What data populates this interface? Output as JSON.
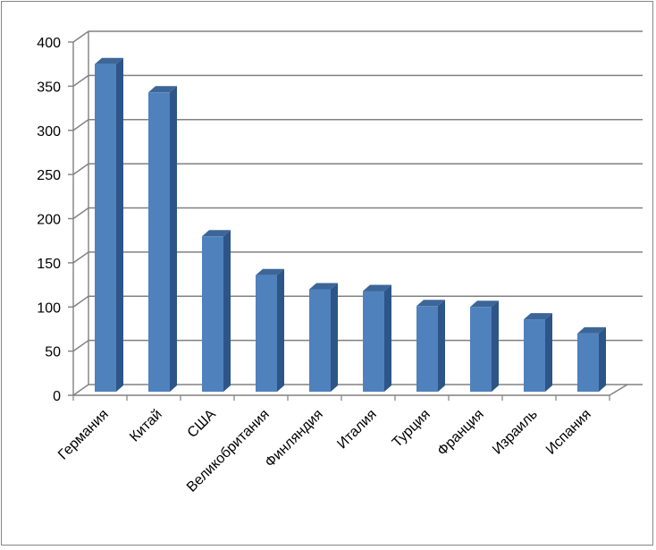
{
  "chart_data": {
    "type": "bar",
    "style": "3d-column",
    "categories": [
      "Германия",
      "Китай",
      "США",
      "Великобритания",
      "Финляндия",
      "Италия",
      "Турция",
      "Франция",
      "Израиль",
      "Испания"
    ],
    "values": [
      375,
      343,
      180,
      136,
      120,
      118,
      101,
      100,
      86,
      70
    ],
    "ylim": [
      0,
      400
    ],
    "yticks": [
      0,
      50,
      100,
      150,
      200,
      250,
      300,
      350,
      400
    ],
    "ytick_labels": [
      "0",
      "50",
      "100",
      "150",
      "200",
      "250",
      "300",
      "350",
      "400"
    ],
    "grid": true,
    "legend": "none",
    "colors": {
      "bar_front": "#4f81bd",
      "bar_side": "#2d5587",
      "bar_top": "#3c6698",
      "grid": "#808080",
      "wall_edge": "#808080"
    }
  }
}
